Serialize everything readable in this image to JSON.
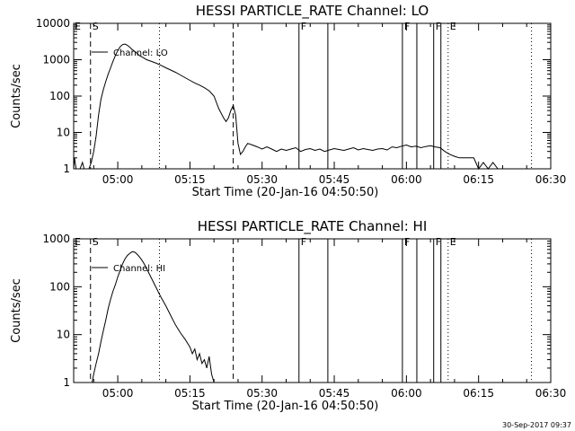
{
  "chart_data": [
    {
      "type": "line",
      "title": "HESSI PARTICLE_RATE Channel: LO",
      "xlabel": "Start Time (20-Jan-16 04:50:50)",
      "ylabel": "Counts/sec",
      "xlim": [
        "04:50:50",
        "06:30:00"
      ],
      "ylim": [
        1,
        10000
      ],
      "yscale": "log",
      "grid": false,
      "legend": "upper-left",
      "x_ticks": [
        "05:00",
        "05:15",
        "05:30",
        "05:45",
        "06:00",
        "06:15",
        "06:30"
      ],
      "y_ticks": [
        "1",
        "10",
        "100",
        "1000",
        "10000"
      ],
      "series": [
        {
          "name": "Channel: LO",
          "x": [
            "04:50:50",
            "04:51:00",
            "04:51:20",
            "04:51:50",
            "04:52:10",
            "04:52:40",
            "04:53:00",
            "04:53:30",
            "04:54:00",
            "04:54:30",
            "04:55:00",
            "04:55:30",
            "04:56:00",
            "04:56:30",
            "04:57:00",
            "04:57:30",
            "04:58:00",
            "04:58:30",
            "04:59:00",
            "04:59:30",
            "05:00:00",
            "05:00:30",
            "05:01:00",
            "05:01:30",
            "05:02:00",
            "05:02:30",
            "05:03:00",
            "05:03:30",
            "05:04:00",
            "05:04:30",
            "05:05:00",
            "05:05:30",
            "05:06:00",
            "05:07:00",
            "05:08:00",
            "05:09:00",
            "05:10:00",
            "05:11:00",
            "05:12:00",
            "05:13:00",
            "05:14:00",
            "05:15:00",
            "05:16:00",
            "05:17:00",
            "05:18:00",
            "05:19:00",
            "05:20:00",
            "05:21:00",
            "05:22:00",
            "05:22:30",
            "05:23:00",
            "05:23:30",
            "05:24:00",
            "05:24:30",
            "05:25:00",
            "05:25:30",
            "05:26:00",
            "05:26:30",
            "05:27:00",
            "05:28:00",
            "05:29:00",
            "05:30:00",
            "05:31:00",
            "05:32:00",
            "05:33:00",
            "05:34:00",
            "05:35:00",
            "05:36:00",
            "05:37:00",
            "05:38:00",
            "05:39:00",
            "05:40:00",
            "05:41:00",
            "05:42:00",
            "05:43:00",
            "05:44:00",
            "05:45:00",
            "05:46:00",
            "05:47:00",
            "05:48:00",
            "05:49:00",
            "05:50:00",
            "05:51:00",
            "05:52:00",
            "05:53:00",
            "05:54:00",
            "05:55:00",
            "05:56:00",
            "05:57:00",
            "05:58:00",
            "05:59:00",
            "06:00:00",
            "06:01:00",
            "06:02:00",
            "06:03:00",
            "06:04:00",
            "06:05:00",
            "06:06:00",
            "06:07:00",
            "06:08:00",
            "06:09:00",
            "06:10:00",
            "06:11:00",
            "06:12:00",
            "06:13:00",
            "06:14:00",
            "06:15:00",
            "06:16:00",
            "06:17:00",
            "06:18:00",
            "06:19:00",
            "06:20:00",
            "06:20:30"
          ],
          "y": [
            1,
            2,
            1,
            1,
            1,
            1.5,
            1,
            1,
            1,
            1.5,
            3,
            8,
            30,
            80,
            150,
            250,
            400,
            600,
            900,
            1300,
            1800,
            2300,
            2600,
            2700,
            2500,
            2200,
            1900,
            1700,
            1500,
            1300,
            1200,
            1100,
            1000,
            900,
            800,
            700,
            600,
            520,
            450,
            380,
            320,
            270,
            230,
            200,
            170,
            140,
            100,
            45,
            25,
            20,
            25,
            40,
            55,
            30,
            5,
            2.5,
            3,
            4,
            5,
            4.5,
            4,
            3.5,
            4,
            3.5,
            3,
            3.5,
            3.2,
            3.5,
            3.8,
            3,
            3.4,
            3.6,
            3.2,
            3.5,
            3,
            3.3,
            3.6,
            3.4,
            3.2,
            3.5,
            3.8,
            3.3,
            3.6,
            3.4,
            3.2,
            3.5,
            3.6,
            3.3,
            4,
            3.8,
            4.2,
            4.5,
            4,
            4.2,
            3.8,
            4.1,
            4.3,
            4,
            3.8,
            3,
            2.5,
            2.2,
            2,
            2,
            2,
            2,
            1,
            1.5,
            1,
            1.5,
            1,
            1,
            1
          ]
        }
      ],
      "vlines": [
        {
          "x": "04:54:20",
          "style": "dashed",
          "label": "S"
        },
        {
          "x": "05:08:40",
          "style": "dotted",
          "label": ""
        },
        {
          "x": "05:24:00",
          "style": "dashed",
          "label": ""
        },
        {
          "x": "05:37:40",
          "style": "solid",
          "label": "F"
        },
        {
          "x": "05:43:40",
          "style": "solid",
          "label": ""
        },
        {
          "x": "05:59:10",
          "style": "solid",
          "label": "F"
        },
        {
          "x": "06:02:10",
          "style": "solid",
          "label": ""
        },
        {
          "x": "06:05:40",
          "style": "solid",
          "label": "F"
        },
        {
          "x": "06:07:10",
          "style": "solid",
          "label": ""
        },
        {
          "x": "06:08:40",
          "style": "dotted",
          "label": "E"
        },
        {
          "x": "06:26:00",
          "style": "dotted",
          "label": ""
        }
      ],
      "corner_label": "E"
    },
    {
      "type": "line",
      "title": "HESSI PARTICLE_RATE Channel: HI",
      "xlabel": "Start Time (20-Jan-16 04:50:50)",
      "ylabel": "Counts/sec",
      "xlim": [
        "04:50:50",
        "06:30:00"
      ],
      "ylim": [
        1,
        1000
      ],
      "yscale": "log",
      "grid": false,
      "legend": "upper-left",
      "x_ticks": [
        "05:00",
        "05:15",
        "05:30",
        "05:45",
        "06:00",
        "06:15",
        "06:30"
      ],
      "y_ticks": [
        "1",
        "10",
        "100",
        "1000"
      ],
      "series": [
        {
          "name": "Channel: HI",
          "x": [
            "04:54:40",
            "04:55:00",
            "04:55:30",
            "04:56:00",
            "04:56:30",
            "04:57:00",
            "04:57:30",
            "04:58:00",
            "04:58:30",
            "04:59:00",
            "04:59:30",
            "05:00:00",
            "05:00:30",
            "05:01:00",
            "05:01:30",
            "05:02:00",
            "05:02:30",
            "05:03:00",
            "05:03:30",
            "05:04:00",
            "05:04:30",
            "05:05:00",
            "05:05:30",
            "05:06:00",
            "05:06:30",
            "05:07:00",
            "05:07:30",
            "05:08:00",
            "05:08:30",
            "05:09:00",
            "05:10:00",
            "05:11:00",
            "05:12:00",
            "05:13:00",
            "05:14:00",
            "05:15:00",
            "05:15:30",
            "05:16:00",
            "05:16:30",
            "05:17:00",
            "05:17:30",
            "05:18:00",
            "05:18:30",
            "05:19:00",
            "05:19:30",
            "05:20:00"
          ],
          "y": [
            1,
            1.5,
            2.5,
            4,
            7,
            12,
            20,
            35,
            55,
            80,
            110,
            160,
            220,
            300,
            380,
            450,
            500,
            540,
            530,
            480,
            420,
            360,
            300,
            240,
            190,
            150,
            120,
            95,
            75,
            60,
            40,
            25,
            16,
            11,
            8,
            5.5,
            4,
            5,
            3,
            4,
            2.5,
            3,
            2,
            3.5,
            1.5,
            1
          ]
        }
      ],
      "vlines": [
        {
          "x": "04:54:20",
          "style": "dashed",
          "label": "S"
        },
        {
          "x": "05:08:40",
          "style": "dotted",
          "label": ""
        },
        {
          "x": "05:24:00",
          "style": "dashed",
          "label": ""
        },
        {
          "x": "05:37:40",
          "style": "solid",
          "label": "F"
        },
        {
          "x": "05:43:40",
          "style": "solid",
          "label": ""
        },
        {
          "x": "05:59:10",
          "style": "solid",
          "label": "F"
        },
        {
          "x": "06:02:10",
          "style": "solid",
          "label": ""
        },
        {
          "x": "06:05:40",
          "style": "solid",
          "label": "F"
        },
        {
          "x": "06:07:10",
          "style": "solid",
          "label": ""
        },
        {
          "x": "06:08:40",
          "style": "dotted",
          "label": "E"
        },
        {
          "x": "06:26:00",
          "style": "dotted",
          "label": ""
        }
      ],
      "corner_label": "E"
    }
  ],
  "footer": {
    "timestamp": "30-Sep-2017 09:37"
  }
}
